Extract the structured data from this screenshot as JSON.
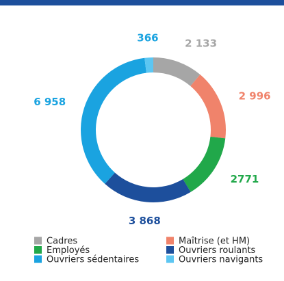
{
  "chart_data": {
    "type": "pie",
    "categories": [
      "Cadres",
      "Maîtrise (et HM)",
      "Employés",
      "Ouvriers roulants",
      "Ouvriers sédentaires",
      "Ouvriers navigants"
    ],
    "values": [
      2133,
      2996,
      2771,
      3868,
      6958,
      366
    ],
    "value_labels": [
      "2 133",
      "2 996",
      "2771",
      "3 868",
      "6 958",
      "366"
    ],
    "colors": [
      "#a6a6a6",
      "#f0836b",
      "#21a84a",
      "#1d4f9c",
      "#1aa3e0",
      "#5cc6f2"
    ],
    "label_colors": [
      "#a6a6a6",
      "#f0836b",
      "#21a84a",
      "#1d4f9c",
      "#1aa3e0",
      "#1aa3e0"
    ]
  }
}
